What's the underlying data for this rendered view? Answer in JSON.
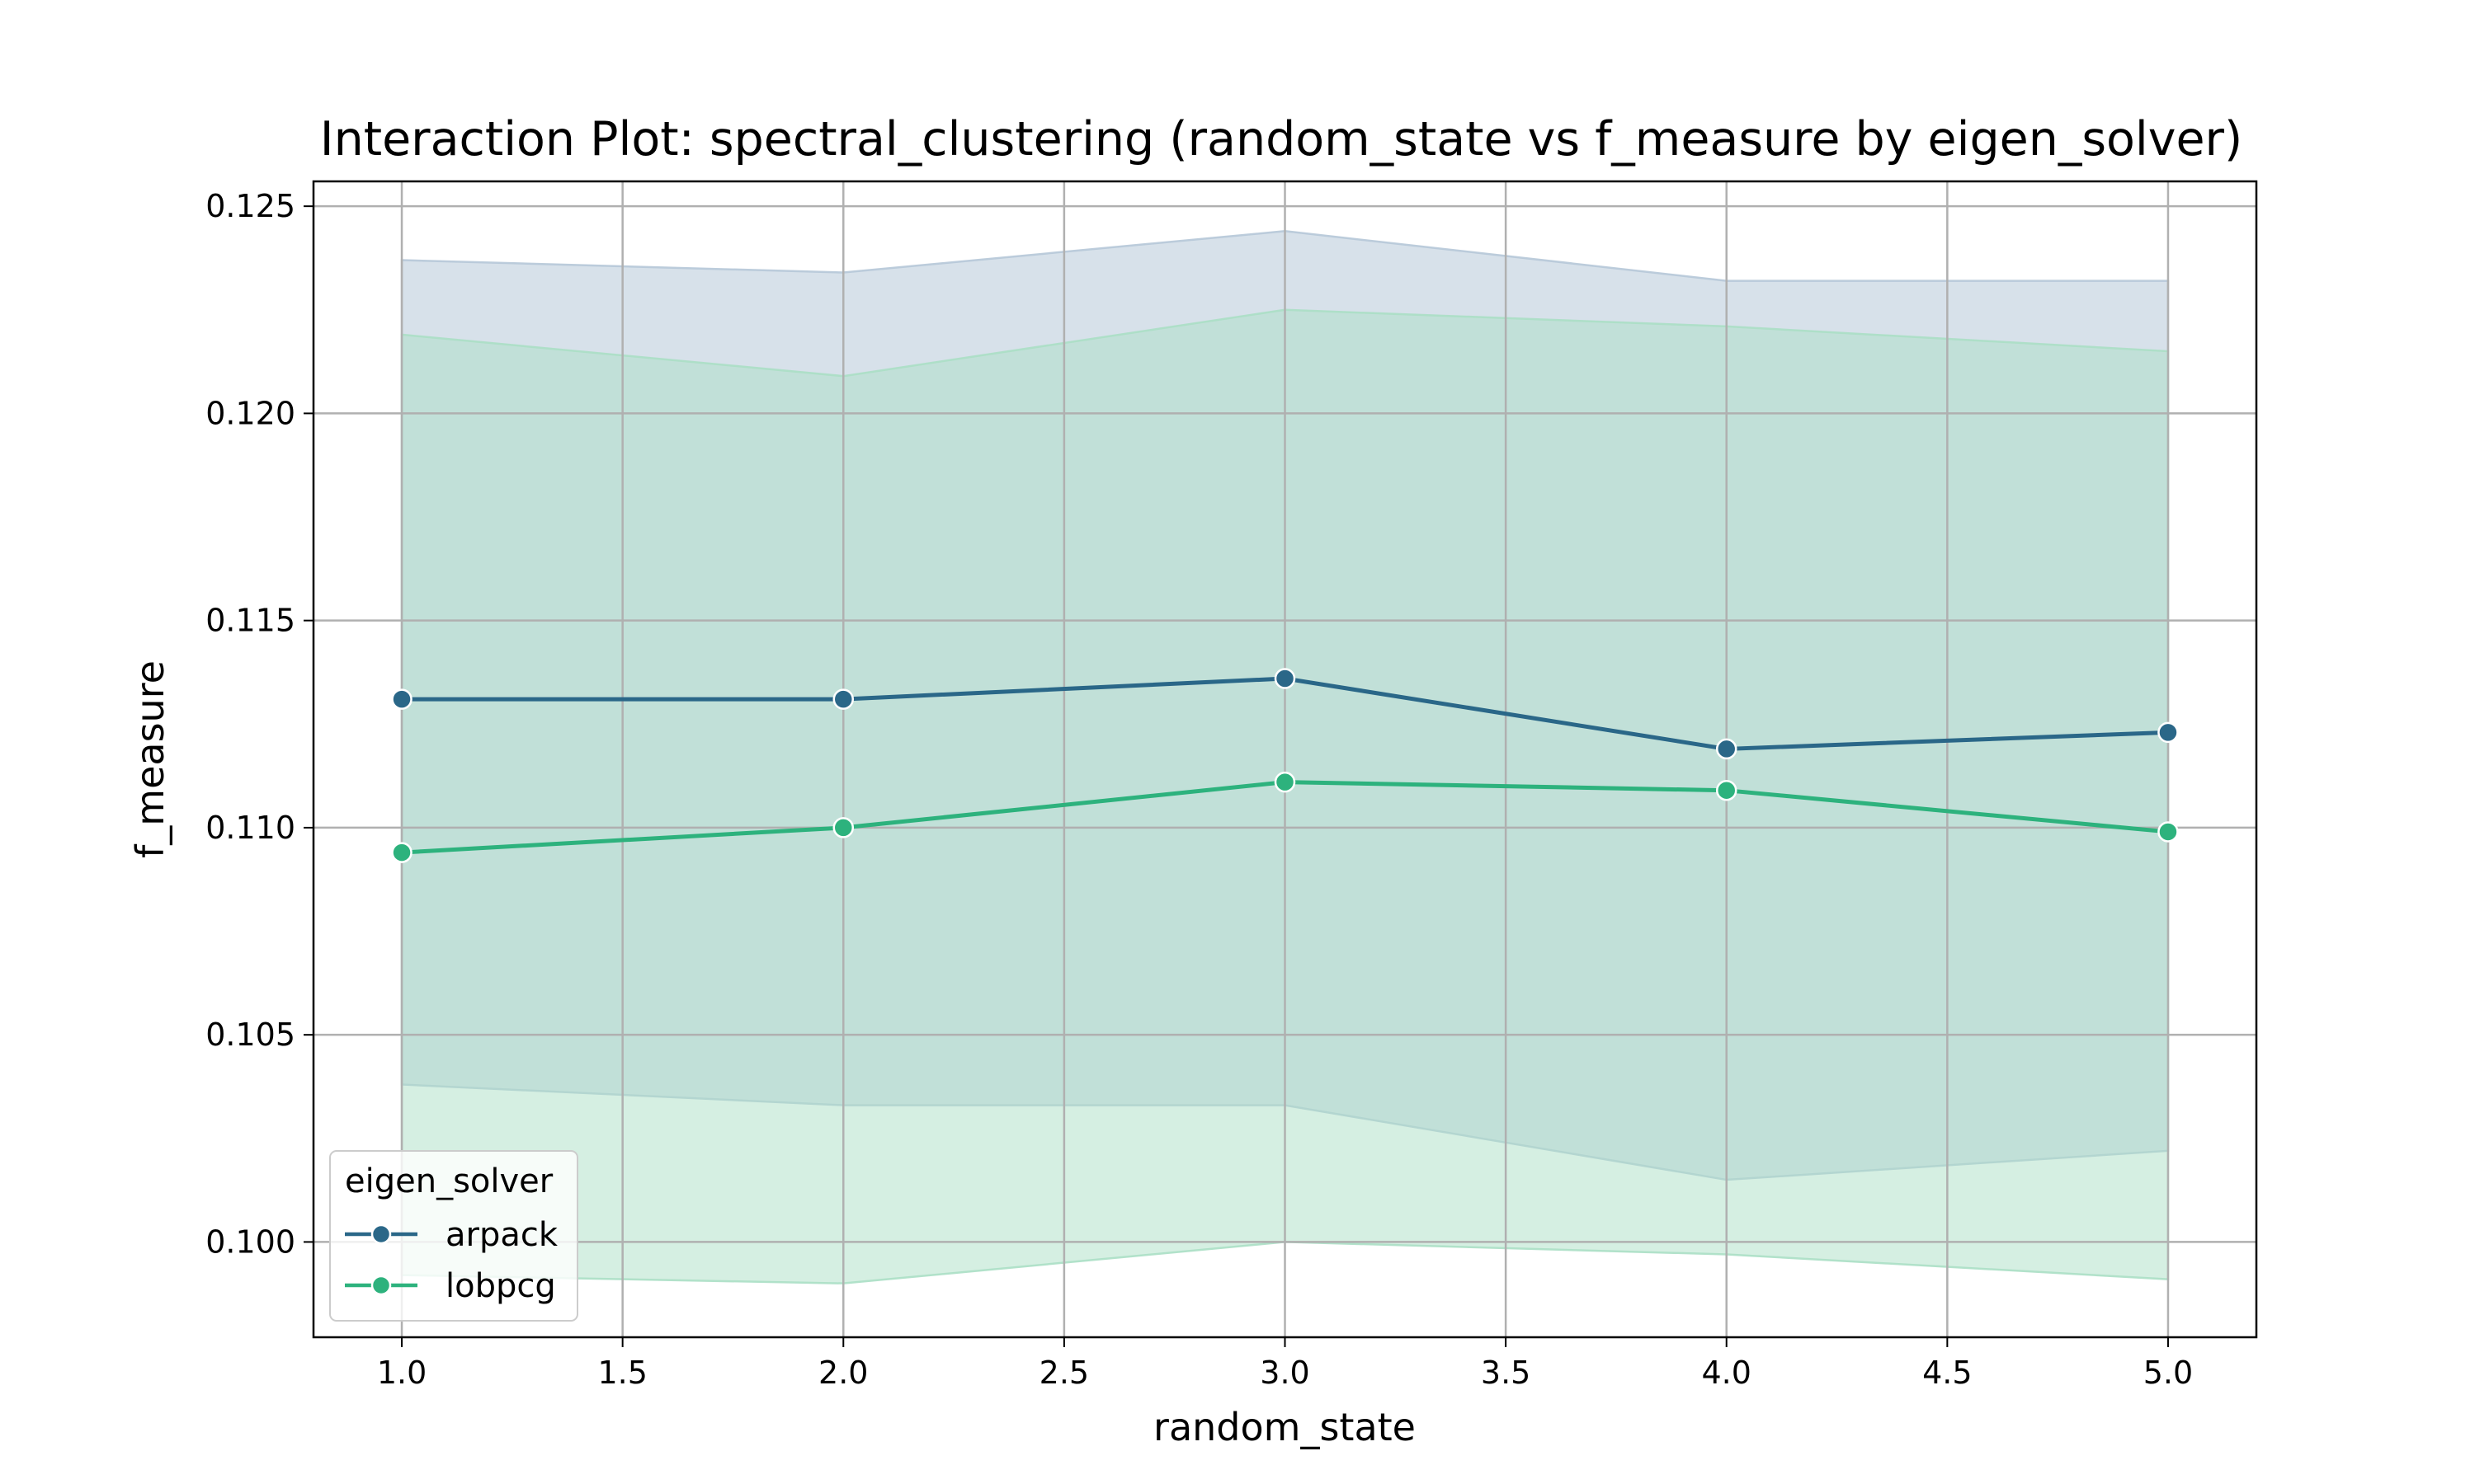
{
  "chart_data": {
    "type": "line",
    "title": "Interaction Plot: spectral_clustering (random_state vs f_measure by eigen_solver)",
    "xlabel": "random_state",
    "ylabel": "f_measure",
    "xlim": [
      0.8,
      5.2
    ],
    "ylim": [
      0.0977,
      0.1256
    ],
    "x_ticks": [
      "1.0",
      "1.5",
      "2.0",
      "2.5",
      "3.0",
      "3.5",
      "4.0",
      "4.5",
      "5.0"
    ],
    "y_ticks": [
      "0.100",
      "0.105",
      "0.110",
      "0.115",
      "0.120",
      "0.125"
    ],
    "grid": true,
    "legend": {
      "title": "eigen_solver",
      "placement": "lower-left"
    },
    "x": [
      1.0,
      2.0,
      3.0,
      4.0,
      5.0
    ],
    "series": [
      {
        "name": "arpack",
        "color": "#2a6788",
        "band_color": "#b6c8d8",
        "values": [
          0.1131,
          0.1131,
          0.1136,
          0.1119,
          0.1123
        ],
        "lower": [
          0.1038,
          0.1033,
          0.1033,
          0.1015,
          0.1022
        ],
        "upper": [
          0.1237,
          0.1234,
          0.1244,
          0.1232,
          0.1232
        ]
      },
      {
        "name": "lobpcg",
        "color": "#2db27d",
        "band_color": "#abdfc5",
        "values": [
          0.1094,
          0.11,
          0.1111,
          0.1109,
          0.1099
        ],
        "lower": [
          0.0992,
          0.099,
          0.1,
          0.0997,
          0.0991
        ],
        "upper": [
          0.1219,
          0.1209,
          0.1225,
          0.1221,
          0.1215
        ]
      }
    ]
  }
}
